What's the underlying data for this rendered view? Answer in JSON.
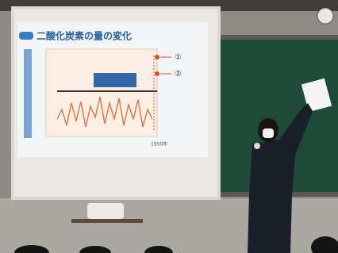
{
  "slide": {
    "title": "二酸化炭素の量の変化",
    "markers": [
      "①",
      "②"
    ],
    "axis_end": "1950年"
  }
}
